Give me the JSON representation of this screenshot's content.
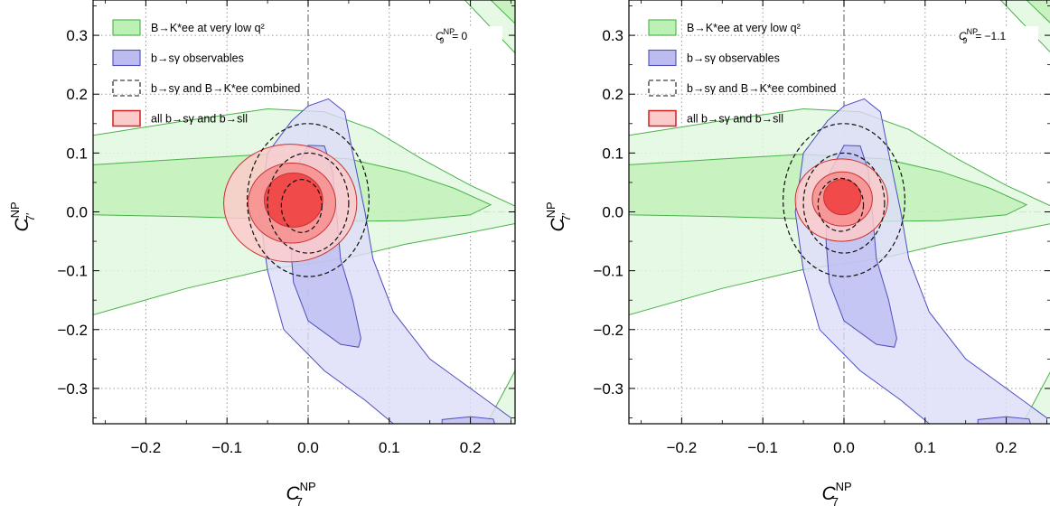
{
  "colors": {
    "green_fill_outer": "#e2f8df",
    "green_fill_inner": "#bdf0b5",
    "green_line": "#49b249",
    "blue_fill_outer": "#dcdcf8",
    "blue_fill_inner": "#bcbcf1",
    "blue_line": "#4e4ebf",
    "red_fill_3": "#fbcaca",
    "red_fill_2": "#f78e8e",
    "red_fill_1": "#f03c3c",
    "red_line": "#c83232",
    "dashed_line": "#111111",
    "grid": "#9a9a9a"
  },
  "chart_data": [
    {
      "type": "contour",
      "panel": "left",
      "xlabel": {
        "base": "C",
        "sup": "NP",
        "sub": "7"
      },
      "ylabel": {
        "base": "C",
        "sup": "NP",
        "sub": "7′"
      },
      "xlim": [
        -0.265,
        0.255
      ],
      "ylim": [
        -0.36,
        0.36
      ],
      "xticks": [
        -0.2,
        -0.1,
        0.0,
        0.1,
        0.2
      ],
      "xtick_labels": [
        "−0.2",
        "−0.1",
        "0.0",
        "0.1",
        "0.2"
      ],
      "yticks": [
        -0.3,
        -0.2,
        -0.1,
        0.0,
        0.1,
        0.2,
        0.3
      ],
      "ytick_labels": [
        "−0.3",
        "−0.2",
        "−0.1",
        "0.0",
        "0.1",
        "0.2",
        "0.3"
      ],
      "grid": true,
      "legend_position": "top-left",
      "annotation": {
        "base": "C",
        "sub": "9",
        "sup": "NP",
        "eq": "= 0"
      },
      "series": [
        {
          "name": "B→K*ee at very low q²",
          "style": "green-filled",
          "regions": [
            {
              "level": "2σ",
              "points": [
                [
                  -0.265,
                  0.13
                ],
                [
                  -0.15,
                  0.155
                ],
                [
                  -0.05,
                  0.175
                ],
                [
                  0.02,
                  0.17
                ],
                [
                  0.08,
                  0.14
                ],
                [
                  0.14,
                  0.09
                ],
                [
                  0.2,
                  0.045
                ],
                [
                  0.255,
                  0.01
                ],
                [
                  0.255,
                  -0.02
                ],
                [
                  0.2,
                  -0.035
                ],
                [
                  0.12,
                  -0.055
                ],
                [
                  0.05,
                  -0.078
                ],
                [
                  -0.05,
                  -0.098
                ],
                [
                  -0.15,
                  -0.13
                ],
                [
                  -0.265,
                  -0.175
                ]
              ]
            },
            {
              "level": "1σ",
              "points": [
                [
                  -0.265,
                  0.08
                ],
                [
                  -0.15,
                  0.09
                ],
                [
                  -0.05,
                  0.098
                ],
                [
                  0.05,
                  0.09
                ],
                [
                  0.12,
                  0.068
                ],
                [
                  0.18,
                  0.04
                ],
                [
                  0.225,
                  0.012
                ],
                [
                  0.2,
                  -0.005
                ],
                [
                  0.12,
                  -0.015
                ],
                [
                  0.05,
                  -0.016
                ],
                [
                  -0.05,
                  -0.012
                ],
                [
                  -0.15,
                  -0.008
                ],
                [
                  -0.265,
                  -0.005
                ]
              ]
            },
            {
              "level": "2σ-corner-top",
              "points": [
                [
                  0.193,
                  0.36
                ],
                [
                  0.255,
                  0.36
                ],
                [
                  0.255,
                  0.27
                ]
              ]
            },
            {
              "level": "1σ-corner-top",
              "points": [
                [
                  0.225,
                  0.36
                ],
                [
                  0.255,
                  0.36
                ],
                [
                  0.255,
                  0.32
                ]
              ]
            },
            {
              "level": "2σ-corner-bottom",
              "points": [
                [
                  0.22,
                  -0.36
                ],
                [
                  0.255,
                  -0.27
                ],
                [
                  0.255,
                  -0.36
                ]
              ]
            }
          ]
        },
        {
          "name": "b→sγ observables",
          "style": "blue-filled",
          "regions": [
            {
              "level": "2σ",
              "points": [
                [
                  -0.02,
                  0.155
                ],
                [
                  0.0,
                  0.18
                ],
                [
                  0.025,
                  0.192
                ],
                [
                  0.045,
                  0.17
                ],
                [
                  0.055,
                  0.1
                ],
                [
                  0.07,
                  0.0
                ],
                [
                  0.08,
                  -0.08
                ],
                [
                  0.105,
                  -0.17
                ],
                [
                  0.15,
                  -0.25
                ],
                [
                  0.22,
                  -0.32
                ],
                [
                  0.25,
                  -0.35
                ],
                [
                  0.25,
                  -0.36
                ],
                [
                  0.105,
                  -0.36
                ],
                [
                  0.07,
                  -0.32
                ],
                [
                  0.02,
                  -0.27
                ],
                [
                  -0.03,
                  -0.2
                ],
                [
                  -0.05,
                  -0.1
                ],
                [
                  -0.06,
                  0.0
                ],
                [
                  -0.05,
                  0.1
                ]
              ]
            },
            {
              "level": "1σ",
              "points": [
                [
                  -0.02,
                  0.06
                ],
                [
                  0.0,
                  0.113
                ],
                [
                  0.02,
                  0.112
                ],
                [
                  0.03,
                  0.07
                ],
                [
                  0.035,
                  0.0
                ],
                [
                  0.04,
                  -0.08
                ],
                [
                  0.055,
                  -0.15
                ],
                [
                  0.065,
                  -0.215
                ],
                [
                  0.062,
                  -0.23
                ],
                [
                  0.04,
                  -0.225
                ],
                [
                  0.0,
                  -0.185
                ],
                [
                  -0.018,
                  -0.12
                ],
                [
                  -0.022,
                  -0.05
                ]
              ]
            },
            {
              "level": "1σ-bottom",
              "points": [
                [
                  0.165,
                  -0.353
                ],
                [
                  0.2,
                  -0.348
                ],
                [
                  0.228,
                  -0.352
                ],
                [
                  0.23,
                  -0.36
                ],
                [
                  0.165,
                  -0.36
                ]
              ]
            }
          ]
        },
        {
          "name": "b→sγ and B→K*ee combined",
          "style": "black-dashed",
          "ellipses": [
            {
              "level": "3σ",
              "cx": 0.0,
              "cy": 0.02,
              "rx": 0.075,
              "ry": 0.13
            },
            {
              "level": "2σ",
              "cx": 0.0,
              "cy": 0.015,
              "rx": 0.05,
              "ry": 0.085
            },
            {
              "level": "1σ",
              "cx": -0.008,
              "cy": 0.01,
              "rx": 0.025,
              "ry": 0.045
            }
          ]
        },
        {
          "name": "all b→sγ and b→sll",
          "style": "red-filled",
          "ellipses": [
            {
              "level": "3σ",
              "cx": -0.022,
              "cy": 0.015,
              "rx": 0.082,
              "ry": 0.1
            },
            {
              "level": "2σ",
              "cx": -0.02,
              "cy": 0.015,
              "rx": 0.054,
              "ry": 0.068
            },
            {
              "level": "1σ",
              "cx": -0.018,
              "cy": 0.02,
              "rx": 0.036,
              "ry": 0.046
            }
          ]
        }
      ]
    },
    {
      "type": "contour",
      "panel": "right",
      "xlabel": {
        "base": "C",
        "sup": "NP",
        "sub": "7"
      },
      "ylabel": {
        "base": "C",
        "sup": "NP",
        "sub": "7′"
      },
      "xlim": [
        -0.265,
        0.255
      ],
      "ylim": [
        -0.36,
        0.36
      ],
      "xticks": [
        -0.2,
        -0.1,
        0.0,
        0.1,
        0.2
      ],
      "xtick_labels": [
        "−0.2",
        "−0.1",
        "0.0",
        "0.1",
        "0.2"
      ],
      "yticks": [
        -0.3,
        -0.2,
        -0.1,
        0.0,
        0.1,
        0.2,
        0.3
      ],
      "ytick_labels": [
        "−0.3",
        "−0.2",
        "−0.1",
        "0.0",
        "0.1",
        "0.2",
        "0.3"
      ],
      "grid": true,
      "legend_position": "top-left",
      "annotation": {
        "base": "C",
        "sub": "9",
        "sup": "NP",
        "eq": "= −1.1"
      },
      "series": [
        {
          "name": "B→K*ee at very low q²",
          "style": "green-filled",
          "regions": [
            {
              "level": "2σ",
              "points": [
                [
                  -0.265,
                  0.13
                ],
                [
                  -0.15,
                  0.155
                ],
                [
                  -0.05,
                  0.175
                ],
                [
                  0.02,
                  0.17
                ],
                [
                  0.08,
                  0.14
                ],
                [
                  0.14,
                  0.09
                ],
                [
                  0.2,
                  0.045
                ],
                [
                  0.255,
                  0.01
                ],
                [
                  0.255,
                  -0.02
                ],
                [
                  0.2,
                  -0.035
                ],
                [
                  0.12,
                  -0.055
                ],
                [
                  0.05,
                  -0.078
                ],
                [
                  -0.05,
                  -0.098
                ],
                [
                  -0.15,
                  -0.13
                ],
                [
                  -0.265,
                  -0.175
                ]
              ]
            },
            {
              "level": "1σ",
              "points": [
                [
                  -0.265,
                  0.08
                ],
                [
                  -0.15,
                  0.09
                ],
                [
                  -0.05,
                  0.098
                ],
                [
                  0.05,
                  0.09
                ],
                [
                  0.12,
                  0.068
                ],
                [
                  0.18,
                  0.04
                ],
                [
                  0.225,
                  0.012
                ],
                [
                  0.2,
                  -0.005
                ],
                [
                  0.12,
                  -0.015
                ],
                [
                  0.05,
                  -0.016
                ],
                [
                  -0.05,
                  -0.012
                ],
                [
                  -0.15,
                  -0.008
                ],
                [
                  -0.265,
                  -0.005
                ]
              ]
            },
            {
              "level": "2σ-corner-top",
              "points": [
                [
                  0.193,
                  0.36
                ],
                [
                  0.255,
                  0.36
                ],
                [
                  0.255,
                  0.27
                ]
              ]
            },
            {
              "level": "1σ-corner-top",
              "points": [
                [
                  0.225,
                  0.36
                ],
                [
                  0.255,
                  0.36
                ],
                [
                  0.255,
                  0.32
                ]
              ]
            },
            {
              "level": "2σ-corner-bottom",
              "points": [
                [
                  0.22,
                  -0.36
                ],
                [
                  0.255,
                  -0.27
                ],
                [
                  0.255,
                  -0.36
                ]
              ]
            }
          ]
        },
        {
          "name": "b→sγ observables",
          "style": "blue-filled",
          "regions": [
            {
              "level": "2σ",
              "points": [
                [
                  -0.02,
                  0.155
                ],
                [
                  0.0,
                  0.18
                ],
                [
                  0.025,
                  0.192
                ],
                [
                  0.045,
                  0.17
                ],
                [
                  0.055,
                  0.1
                ],
                [
                  0.07,
                  0.0
                ],
                [
                  0.08,
                  -0.08
                ],
                [
                  0.105,
                  -0.17
                ],
                [
                  0.15,
                  -0.25
                ],
                [
                  0.22,
                  -0.32
                ],
                [
                  0.25,
                  -0.35
                ],
                [
                  0.25,
                  -0.36
                ],
                [
                  0.105,
                  -0.36
                ],
                [
                  0.07,
                  -0.32
                ],
                [
                  0.02,
                  -0.27
                ],
                [
                  -0.03,
                  -0.2
                ],
                [
                  -0.05,
                  -0.1
                ],
                [
                  -0.06,
                  0.0
                ],
                [
                  -0.05,
                  0.1
                ]
              ]
            },
            {
              "level": "1σ",
              "points": [
                [
                  -0.02,
                  0.06
                ],
                [
                  0.0,
                  0.113
                ],
                [
                  0.02,
                  0.112
                ],
                [
                  0.03,
                  0.07
                ],
                [
                  0.035,
                  0.0
                ],
                [
                  0.04,
                  -0.08
                ],
                [
                  0.055,
                  -0.15
                ],
                [
                  0.065,
                  -0.215
                ],
                [
                  0.062,
                  -0.23
                ],
                [
                  0.04,
                  -0.225
                ],
                [
                  0.0,
                  -0.185
                ],
                [
                  -0.018,
                  -0.12
                ],
                [
                  -0.022,
                  -0.05
                ]
              ]
            },
            {
              "level": "1σ-bottom",
              "points": [
                [
                  0.165,
                  -0.353
                ],
                [
                  0.2,
                  -0.348
                ],
                [
                  0.228,
                  -0.352
                ],
                [
                  0.23,
                  -0.36
                ],
                [
                  0.165,
                  -0.36
                ]
              ]
            }
          ]
        },
        {
          "name": "b→sγ and B→K*ee combined",
          "style": "black-dashed",
          "ellipses": [
            {
              "level": "3σ",
              "cx": 0.0,
              "cy": 0.02,
              "rx": 0.075,
              "ry": 0.13
            },
            {
              "level": "2σ",
              "cx": 0.0,
              "cy": 0.015,
              "rx": 0.05,
              "ry": 0.085
            },
            {
              "level": "1σ",
              "cx": -0.004,
              "cy": 0.012,
              "rx": 0.028,
              "ry": 0.045
            }
          ]
        },
        {
          "name": "all b→sγ and b→sll",
          "style": "red-filled",
          "ellipses": [
            {
              "level": "3σ",
              "cx": -0.003,
              "cy": 0.02,
              "rx": 0.057,
              "ry": 0.07
            },
            {
              "level": "2σ",
              "cx": -0.002,
              "cy": 0.022,
              "rx": 0.037,
              "ry": 0.046
            },
            {
              "level": "1σ",
              "cx": -0.002,
              "cy": 0.025,
              "rx": 0.023,
              "ry": 0.03
            }
          ]
        }
      ]
    }
  ]
}
